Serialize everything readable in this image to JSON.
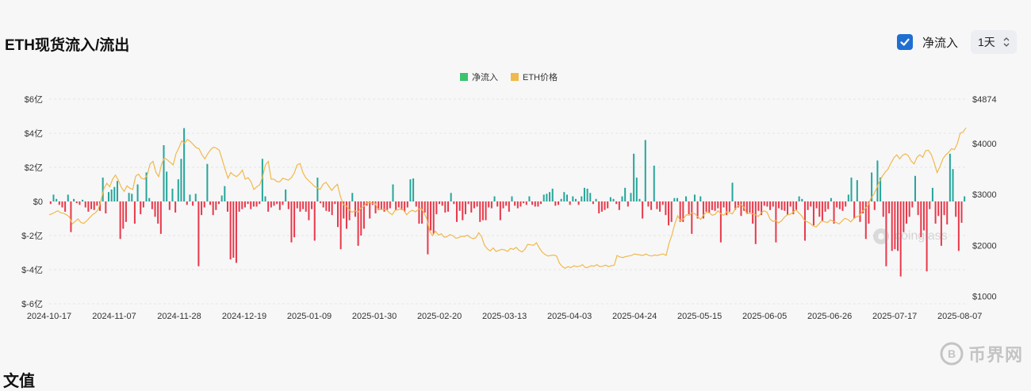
{
  "header": {
    "title": "ETH现货流入/流出"
  },
  "controls": {
    "checkbox_label": "净流入",
    "checkbox_checked": true,
    "interval_value": "1天"
  },
  "footer": {
    "partial_heading": "文值"
  },
  "brand": {
    "name": "币界网",
    "watermark": "coinglass"
  },
  "colors": {
    "inflow": "#26a69a",
    "outflow": "#e8394a",
    "price": "#f0b94a",
    "legend_inflow": "#3cc36f"
  },
  "chart_data": {
    "type": "bar",
    "legend": [
      "净流入",
      "ETH价格"
    ],
    "x_tick_labels": [
      "2024-10-17",
      "2024-11-07",
      "2024-11-28",
      "2024-12-19",
      "2025-01-09",
      "2025-01-30",
      "2025-02-20",
      "2025-03-13",
      "2025-04-03",
      "2025-04-24",
      "2025-05-15",
      "2025-06-05",
      "2025-06-26",
      "2025-07-17",
      "2025-08-07"
    ],
    "y_left_tick_labels": [
      "$6亿",
      "$4亿",
      "$2亿",
      "$0",
      "$-2亿",
      "$-4亿",
      "$-6亿"
    ],
    "y_right_tick_labels": [
      "$4874",
      "$4000",
      "$3000",
      "$2000",
      "$1000"
    ],
    "y_left_range": [
      -6,
      6
    ],
    "y_left_unit": "亿美元",
    "y_right_range": [
      851,
      4874
    ],
    "grid": "horizontal dashed",
    "legend_position": "top-center",
    "x_start": "2024-10-17",
    "x_end": "2025-08-09",
    "series": [
      {
        "name": "净流入",
        "type": "bar",
        "values": [
          -0.15,
          0.4,
          0.15,
          -0.2,
          -0.35,
          -0.6,
          0.4,
          -1.8,
          0.15,
          -0.1,
          -0.2,
          0.1,
          -0.35,
          -0.6,
          -0.45,
          -0.5,
          -0.25,
          -0.55,
          1.4,
          -0.7,
          0.55,
          0.7,
          0.85,
          1.2,
          -2.2,
          -1.6,
          -1.2,
          0.5,
          0.45,
          -1.3,
          1.0,
          -0.75,
          -0.35,
          1.7,
          0.2,
          -0.45,
          -0.9,
          -1.3,
          -1.9,
          3.3,
          1.75,
          -0.5,
          0.75,
          -0.65,
          1.3,
          2.5,
          4.3,
          -0.2,
          0.4,
          -0.25,
          0.45,
          -3.8,
          -0.8,
          -0.35,
          2.2,
          -0.2,
          -0.8,
          -0.5,
          -0.15,
          0.35,
          0.9,
          -0.6,
          -3.4,
          -3.3,
          -3.6,
          -0.6,
          -0.45,
          -0.35,
          -0.15,
          -0.45,
          -0.3,
          -0.3,
          -0.15,
          2.5,
          0.3,
          -0.6,
          -0.35,
          -0.25,
          -0.15,
          -0.5,
          -0.2,
          0.7,
          -0.45,
          -2.4,
          -2.1,
          -0.4,
          -0.6,
          -0.45,
          -0.6,
          -1.1,
          -0.45,
          -2.3,
          1.4,
          -0.1,
          -0.35,
          -0.55,
          -0.6,
          -0.8,
          -0.15,
          -1.5,
          -2.8,
          -1.0,
          -1.6,
          -1.1,
          0.5,
          -0.9,
          -2.6,
          -2.0,
          -1.6,
          -0.25,
          -1.0,
          -0.2,
          -0.7,
          -0.5,
          -0.45,
          -0.6,
          -0.5,
          -0.4,
          1.0,
          -0.5,
          -0.35,
          -0.5,
          -0.6,
          -0.35,
          1.3,
          1.35,
          -0.3,
          -1.3,
          -1.3,
          -0.65,
          -3.1,
          -1.7,
          -1.9,
          -0.75,
          -0.15,
          -0.25,
          -0.65,
          -0.6,
          0.5,
          -0.15,
          -1.2,
          -0.55,
          -1.1,
          -0.75,
          -0.15,
          -0.65,
          -0.4,
          -0.3,
          -1.2,
          -1.1,
          -1.1,
          -0.35,
          -0.4,
          0.3,
          -0.3,
          -1.1,
          -0.4,
          -0.25,
          -0.6,
          0.3,
          -0.25,
          -0.4,
          -0.3,
          -0.1,
          -0.2,
          0.3,
          -0.2,
          -0.3,
          -0.3,
          -0.15,
          0.4,
          0.45,
          0.55,
          0.75,
          -0.25,
          -0.2,
          0.15,
          0.55,
          0.4,
          -0.2,
          0.3,
          0.15,
          -0.2,
          0.3,
          0.8,
          0.75,
          0.5,
          -0.15,
          0.15,
          -0.7,
          -0.6,
          -0.5,
          -0.4,
          0.25,
          0.15,
          -0.15,
          -0.5,
          0.3,
          0.8,
          -0.3,
          0.5,
          2.8,
          1.4,
          0.15,
          -1.0,
          3.6,
          -0.3,
          -0.5,
          2.1,
          -0.45,
          -0.6,
          -0.2,
          -0.8,
          -1.4,
          -1.2,
          0.2,
          0.2,
          -1.2,
          -1.2,
          0.3,
          -0.75,
          -1.9,
          0.4,
          -1.0,
          0.3,
          -1.0,
          -0.6,
          -0.65,
          -0.5,
          -0.55,
          -0.4,
          -2.4,
          -0.35,
          -0.8,
          -0.6,
          1.1,
          -0.5,
          -0.35,
          -0.85,
          -0.55,
          -0.7,
          -0.65,
          -1.3,
          -2.5,
          -0.55,
          -0.8,
          -0.25,
          -0.3,
          -0.5,
          -0.3,
          -2.4,
          -0.4,
          -0.5,
          -0.55,
          -0.8,
          -0.3,
          -0.75,
          -0.5,
          0.3,
          0.15,
          -2.3,
          -0.5,
          -0.3,
          -1.4,
          -0.4,
          -0.9,
          -1.15,
          -0.6,
          -0.45,
          0.2,
          -1.3,
          -0.35,
          -0.45,
          -0.55,
          -0.3,
          0.4,
          1.4,
          -1.0,
          1.25,
          -1.2,
          -0.7,
          -2.2,
          -1.3,
          1.7,
          -0.5,
          2.4,
          1.4,
          -0.9,
          -3.8,
          -0.7,
          -2.9,
          -2.8,
          -2.9,
          -4.4,
          -1.8,
          -1.3,
          -0.9,
          -0.35,
          1.5,
          -0.8,
          -2.1,
          -1.7,
          -4.1,
          -0.45,
          0.8,
          -1.3,
          -0.85,
          -2.6,
          -0.8,
          -1.35,
          2.8,
          1.9,
          -0.9,
          -2.9,
          -1.25,
          0.3
        ]
      },
      {
        "name": "ETH价格",
        "type": "line",
        "axis": "right",
        "values": [
          2600,
          2620,
          2650,
          2680,
          2640,
          2630,
          2600,
          2560,
          2420,
          2470,
          2520,
          2450,
          2430,
          2480,
          2540,
          2600,
          2640,
          2700,
          2890,
          3120,
          3220,
          3150,
          3300,
          3380,
          3280,
          3140,
          3060,
          3170,
          3120,
          3100,
          3360,
          3400,
          3320,
          3300,
          3380,
          3600,
          3650,
          3440,
          3350,
          3600,
          3720,
          3680,
          3630,
          3580,
          3800,
          3920,
          4050,
          4010,
          4080,
          4040,
          3980,
          3920,
          3900,
          3780,
          3700,
          3800,
          3880,
          3930,
          3910,
          3870,
          3690,
          3500,
          3320,
          3430,
          3380,
          3350,
          3400,
          3480,
          3300,
          3330,
          3250,
          3100,
          3150,
          3190,
          3340,
          3580,
          3650,
          3300,
          3300,
          3250,
          3250,
          3320,
          3300,
          3280,
          3330,
          3420,
          3580,
          3610,
          3430,
          3330,
          3270,
          3220,
          3160,
          3130,
          3100,
          3200,
          3240,
          3160,
          3080,
          3150,
          3200,
          2960,
          2800,
          2780,
          2700,
          2650,
          2680,
          2650,
          2720,
          2760,
          2830,
          2840,
          2830,
          2830,
          2720,
          2700,
          2710,
          2700,
          2640,
          2600,
          2690,
          2700,
          2720,
          2690,
          2600,
          2660,
          2690,
          2660,
          2700,
          2730,
          2640,
          2520,
          2280,
          2190,
          2280,
          2200,
          2230,
          2160,
          2170,
          2210,
          2190,
          2140,
          2150,
          2180,
          2170,
          2200,
          2160,
          2130,
          2150,
          2250,
          2170,
          2000,
          1930,
          1890,
          1950,
          1880,
          1900,
          1920,
          1910,
          1880,
          1940,
          1920,
          1960,
          1900,
          1870,
          1920,
          2020,
          2010,
          2000,
          2050,
          1950,
          1870,
          1820,
          1790,
          1800,
          1810,
          1790,
          1650,
          1580,
          1550,
          1580,
          1560,
          1600,
          1580,
          1590,
          1620,
          1560,
          1570,
          1600,
          1590,
          1620,
          1580,
          1590,
          1610,
          1580,
          1600,
          1610,
          1800,
          1770,
          1760,
          1780,
          1790,
          1800,
          1830,
          1820,
          1810,
          1800,
          1830,
          1800,
          1790,
          1810,
          1800,
          1820,
          1830,
          1800,
          2040,
          2200,
          2420,
          2580,
          2480,
          2520,
          2600,
          2590,
          2640,
          2620,
          2560,
          2510,
          2600,
          2650,
          2640,
          2590,
          2610,
          2680,
          2620,
          2590,
          2660,
          2640,
          2620,
          2720,
          2780,
          2800,
          2750,
          2620,
          2630,
          2620,
          2600,
          2570,
          2640,
          2680,
          2650,
          2520,
          2470,
          2490,
          2440,
          2480,
          2550,
          2600,
          2610,
          2650,
          2700,
          2640,
          2580,
          2490,
          2460,
          2430,
          2380,
          2360,
          2420,
          2480,
          2460,
          2450,
          2500,
          2470,
          2450,
          2420,
          2480,
          2530,
          2510,
          2460,
          2520,
          2560,
          2580,
          2660,
          2720,
          2780,
          2920,
          3000,
          3120,
          3250,
          3360,
          3440,
          3500,
          3620,
          3720,
          3780,
          3700,
          3770,
          3800,
          3760,
          3660,
          3600,
          3730,
          3780,
          3730,
          3860,
          3870,
          3780,
          3620,
          3430,
          3550,
          3700,
          3780,
          3830,
          3900,
          3880,
          4000,
          4200,
          4230,
          4310
        ]
      }
    ]
  }
}
